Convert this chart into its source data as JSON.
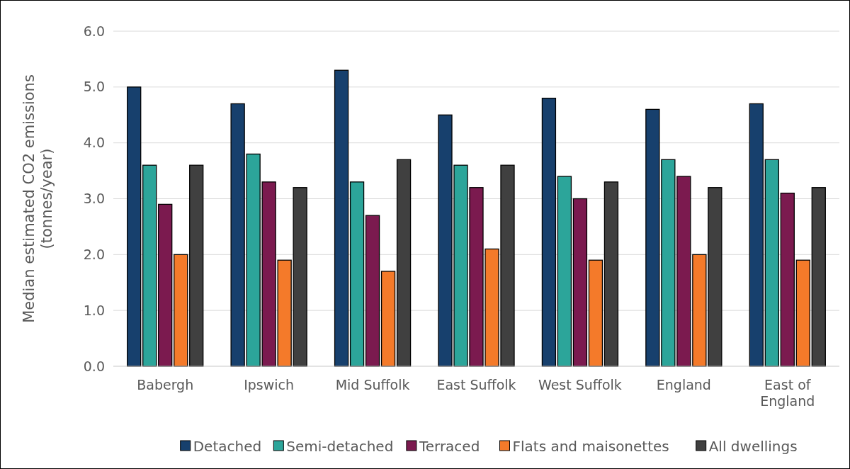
{
  "chart_data": {
    "type": "bar",
    "ylabel": "Median estimated CO2 emissions\n(tonnes/year)",
    "categories": [
      "Babergh",
      "Ipswich",
      "Mid Suffolk",
      "East Suffolk",
      "West Suffolk",
      "England",
      "East of England"
    ],
    "series": [
      {
        "name": "Detached",
        "color": "#17406d",
        "values": [
          5.0,
          4.7,
          5.3,
          4.5,
          4.8,
          4.6,
          4.7
        ]
      },
      {
        "name": "Semi-detached",
        "color": "#2ca59a",
        "values": [
          3.6,
          3.8,
          3.3,
          3.6,
          3.4,
          3.7,
          3.7
        ]
      },
      {
        "name": "Terraced",
        "color": "#7b1a4f",
        "values": [
          2.9,
          3.3,
          2.7,
          3.2,
          3.0,
          3.4,
          3.1
        ]
      },
      {
        "name": "Flats and maisonettes",
        "color": "#f47a2a",
        "values": [
          2.0,
          1.9,
          1.7,
          2.1,
          1.9,
          2.0,
          1.9
        ]
      },
      {
        "name": "All dwellings",
        "color": "#404040",
        "values": [
          3.6,
          3.2,
          3.7,
          3.6,
          3.3,
          3.2,
          3.2
        ]
      }
    ],
    "ylim": [
      0,
      6
    ],
    "yticks": [
      {
        "value": 0,
        "label": "0.0"
      },
      {
        "value": 1,
        "label": "1.0"
      },
      {
        "value": 2,
        "label": "2.0"
      },
      {
        "value": 3,
        "label": "3.0"
      },
      {
        "value": 4,
        "label": "4.0"
      },
      {
        "value": 5,
        "label": "5.0"
      },
      {
        "value": 6,
        "label": "6.0"
      }
    ],
    "grid": "y",
    "legend": "bottom"
  }
}
